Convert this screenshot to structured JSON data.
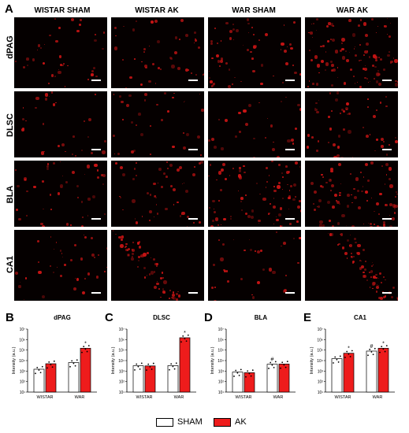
{
  "figure": {
    "panel_a_letter": "A",
    "column_headers": [
      "WISTAR SHAM",
      "WISTAR AK",
      "WAR SHAM",
      "WAR AK"
    ],
    "row_labels": [
      "dPAG",
      "DLSC",
      "BLA",
      "CA1"
    ],
    "legend": {
      "items": [
        {
          "label": "SHAM",
          "color": "#ffffff"
        },
        {
          "label": "AK",
          "color": "#ee1c1c"
        }
      ]
    }
  },
  "chart_data": [
    {
      "letter": "B",
      "type": "bar",
      "title": "dPAG",
      "ylabel": "Intensity (a.u.)",
      "yscale": "log",
      "ylim": [
        10,
        10000000
      ],
      "yticks": [
        "10¹",
        "10²",
        "10³",
        "10⁴",
        "10⁵",
        "10⁶",
        "10⁷"
      ],
      "categories": [
        "WISTAR",
        "WAR"
      ],
      "series": [
        {
          "name": "SHAM",
          "values": [
            1500,
            6500
          ]
        },
        {
          "name": "AK",
          "values": [
            5000,
            150000
          ]
        }
      ],
      "annotations": [
        {
          "category": "WAR",
          "series": "AK",
          "text": "*"
        }
      ]
    },
    {
      "letter": "C",
      "type": "bar",
      "title": "DLSC",
      "ylabel": "Intensity (a.u.)",
      "yscale": "log",
      "ylim": [
        10,
        10000000
      ],
      "yticks": [
        "10¹",
        "10²",
        "10³",
        "10⁴",
        "10⁵",
        "10⁶",
        "10⁷"
      ],
      "categories": [
        "WISTAR",
        "WAR"
      ],
      "series": [
        {
          "name": "SHAM",
          "values": [
            3200,
            3300
          ]
        },
        {
          "name": "AK",
          "values": [
            3100,
            1500000
          ]
        }
      ],
      "annotations": [
        {
          "category": "WAR",
          "series": "AK",
          "text": "*"
        }
      ]
    },
    {
      "letter": "D",
      "type": "bar",
      "title": "BLA",
      "ylabel": "Intensity (a.u.)",
      "yscale": "log",
      "ylim": [
        10,
        10000000
      ],
      "yticks": [
        "10¹",
        "10²",
        "10³",
        "10⁴",
        "10⁵",
        "10⁶",
        "10⁷"
      ],
      "categories": [
        "WISTAR",
        "WAR"
      ],
      "series": [
        {
          "name": "SHAM",
          "values": [
            800,
            4500
          ]
        },
        {
          "name": "AK",
          "values": [
            700,
            4700
          ]
        }
      ],
      "annotations": [
        {
          "category": "WAR",
          "series": "SHAM",
          "text": "#"
        }
      ]
    },
    {
      "letter": "E",
      "type": "bar",
      "title": "CA1",
      "ylabel": "Intensity (a.u.)",
      "yscale": "log",
      "ylim": [
        10,
        10000000
      ],
      "yticks": [
        "10¹",
        "10²",
        "10³",
        "10⁴",
        "10⁵",
        "10⁶",
        "10⁷"
      ],
      "categories": [
        "WISTAR",
        "WAR"
      ],
      "series": [
        {
          "name": "SHAM",
          "values": [
            15000,
            80000
          ]
        },
        {
          "name": "AK",
          "values": [
            50000,
            150000
          ]
        }
      ],
      "annotations": [
        {
          "category": "WISTAR",
          "series": "AK",
          "text": "*"
        },
        {
          "category": "WAR",
          "series": "SHAM",
          "text": "#"
        },
        {
          "category": "WAR",
          "series": "AK",
          "text": "*"
        }
      ]
    }
  ]
}
